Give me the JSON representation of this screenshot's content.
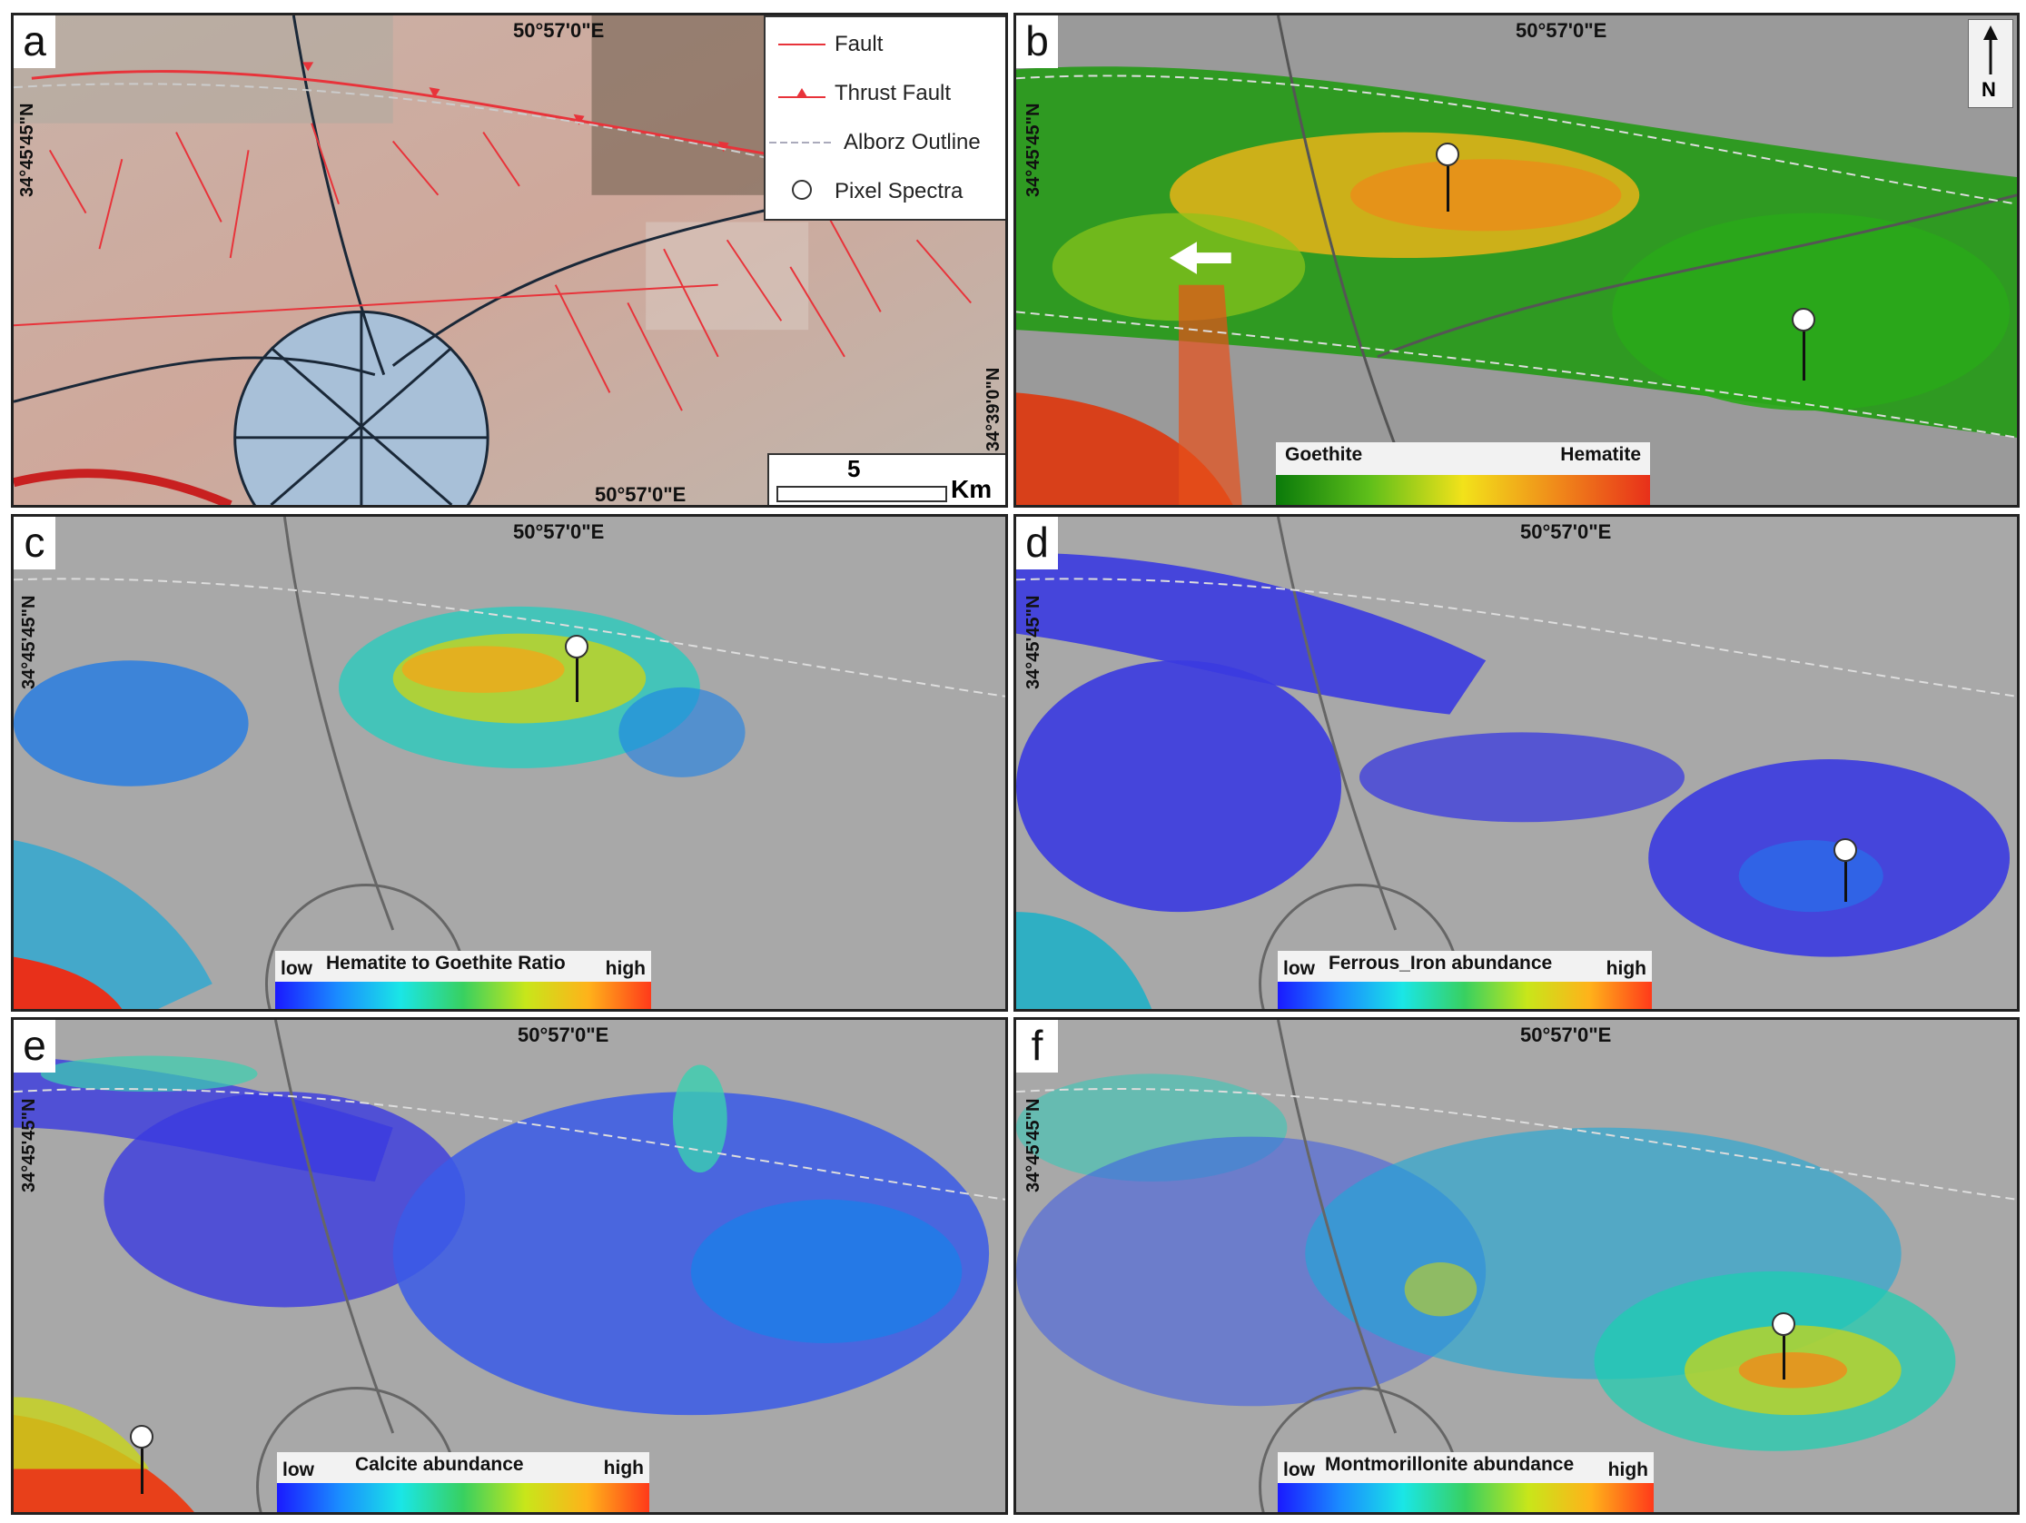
{
  "panels": {
    "a": {
      "letter": "a",
      "lon": "50°57'0\"E",
      "lon_bottom": "50°57'0\"E",
      "lat": "34°45'45\"N",
      "lat_right": "34°39'0\"N",
      "legend": {
        "fault": "Fault",
        "thrust": "Thrust Fault",
        "alborz": "Alborz Outline",
        "pixel": "Pixel Spectra"
      },
      "scale": {
        "value": "5",
        "unit": "Km"
      }
    },
    "b": {
      "letter": "b",
      "lon": "50°57'0\"E",
      "lat": "34°45'45\"N",
      "north": "N",
      "colorbar": {
        "left": "Goethite",
        "right": "Hematite"
      }
    },
    "c": {
      "letter": "c",
      "lon": "50°57'0\"E",
      "lat": "34°45'45\"N",
      "colorbar": {
        "low": "low",
        "title": "Hematite to Goethite Ratio",
        "high": "high"
      }
    },
    "d": {
      "letter": "d",
      "lon": "50°57'0\"E",
      "lat": "34°45'45\"N",
      "colorbar": {
        "low": "low",
        "title": "Ferrous_Iron abundance",
        "high": "high"
      }
    },
    "e": {
      "letter": "e",
      "lon": "50°57'0\"E",
      "lat": "34°45'45\"N",
      "colorbar": {
        "low": "low",
        "title": "Calcite abundance",
        "high": "high"
      }
    },
    "f": {
      "letter": "f",
      "lon": "50°57'0\"E",
      "lat": "34°45'45\"N",
      "colorbar": {
        "low": "low",
        "title": "Montmorillonite abundance",
        "high": "high"
      }
    }
  },
  "colors": {
    "fault": "#e8333a",
    "goethite_hematite_ramp": [
      "#0a7a0a",
      "#5fbf1a",
      "#f2e21a",
      "#f08a1a",
      "#e8301a"
    ],
    "spectral_ramp": [
      "#1a1aff",
      "#1a8cff",
      "#1ae6e6",
      "#38d060",
      "#c8e61a",
      "#ffb21a",
      "#ff3a1a"
    ]
  }
}
